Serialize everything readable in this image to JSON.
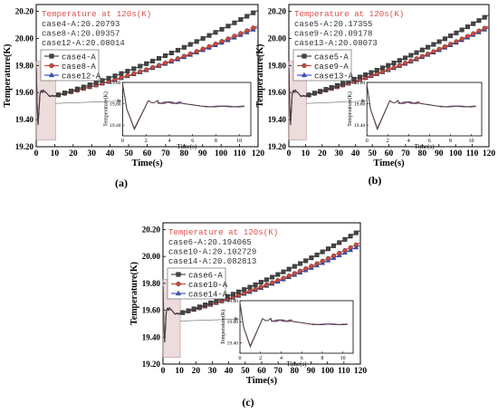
{
  "chart_data": [
    {
      "type": "line",
      "panel_label": "(a)",
      "xlabel": "Time(s)",
      "ylabel": "Temperature(K)",
      "xlim": [
        0,
        120
      ],
      "ylim": [
        19.2,
        20.25
      ],
      "x_ticks": [
        "0",
        "10",
        "20",
        "30",
        "40",
        "50",
        "60",
        "70",
        "80",
        "90",
        "100",
        "110",
        "120"
      ],
      "y_ticks": [
        "19.20",
        "19.40",
        "19.60",
        "19.80",
        "20.00",
        "20.20"
      ],
      "info_title": "Temperature at 120s(K)",
      "info_lines": [
        "case4-A:20.20793",
        "case8-A:20.09357",
        "case12-A:20.08014"
      ],
      "colors": [
        "#444444",
        "#d04a3a",
        "#3a55d8"
      ],
      "series": [
        {
          "name": "case4-A",
          "final": 20.20793
        },
        {
          "name": "case8-A",
          "final": 20.09357
        },
        {
          "name": "case12-A",
          "final": 20.08014
        }
      ],
      "inset": {
        "xlabel": "Time(s)",
        "ylabel": "Temperature(K)",
        "xlim": [
          0,
          11
        ],
        "ylim": [
          19.3,
          19.8
        ],
        "x_ticks": [
          "0",
          "2",
          "4",
          "6",
          "8",
          "10"
        ],
        "y_ticks": [
          "19.40",
          "19.60",
          "19.80"
        ]
      }
    },
    {
      "type": "line",
      "panel_label": "(b)",
      "xlabel": "Time(s)",
      "ylabel": "Temperature(K)",
      "xlim": [
        0,
        120
      ],
      "ylim": [
        19.2,
        20.25
      ],
      "x_ticks": [
        "0",
        "10",
        "20",
        "30",
        "40",
        "50",
        "60",
        "70",
        "80",
        "90",
        "100",
        "110",
        "120"
      ],
      "y_ticks": [
        "19.20",
        "19.40",
        "19.60",
        "19.80",
        "20.00",
        "20.20"
      ],
      "info_title": "Temperature at 120s(K)",
      "info_lines": [
        "case5-A:20.17355",
        "case9-A:20.09178",
        "case13-A:20.08073"
      ],
      "colors": [
        "#444444",
        "#d04a3a",
        "#3a55d8"
      ],
      "series": [
        {
          "name": "case5-A",
          "final": 20.17355
        },
        {
          "name": "case9-A",
          "final": 20.09178
        },
        {
          "name": "case13-A",
          "final": 20.08073
        }
      ],
      "inset": {
        "xlabel": "Time(s)",
        "ylabel": "Temperature(K)",
        "xlim": [
          0,
          11
        ],
        "ylim": [
          19.3,
          19.8
        ],
        "x_ticks": [
          "0",
          "2",
          "4",
          "6",
          "8",
          "10"
        ],
        "y_ticks": [
          "19.40",
          "19.60",
          "19.80"
        ]
      }
    },
    {
      "type": "line",
      "panel_label": "(c)",
      "xlabel": "Time(s)",
      "ylabel": "Temperature(K)",
      "xlim": [
        0,
        120
      ],
      "ylim": [
        19.2,
        20.25
      ],
      "x_ticks": [
        "0",
        "10",
        "20",
        "30",
        "40",
        "50",
        "60",
        "70",
        "80",
        "90",
        "100",
        "110",
        "120"
      ],
      "y_ticks": [
        "19.20",
        "19.40",
        "19.60",
        "19.80",
        "20.00",
        "20.20"
      ],
      "info_title": "Temperature at 120s(K)",
      "info_lines": [
        "case6-A:20.194065",
        "case10-A:20.102729",
        "case14-A:20.082813"
      ],
      "colors": [
        "#444444",
        "#d04a3a",
        "#3a55d8"
      ],
      "series": [
        {
          "name": "case6-A",
          "final": 20.194065
        },
        {
          "name": "case10-A",
          "final": 20.102729
        },
        {
          "name": "case14-A",
          "final": 20.082813
        }
      ],
      "inset": {
        "xlabel": "Time(s)",
        "ylabel": "Temperature(K)",
        "xlim": [
          0,
          11
        ],
        "ylim": [
          19.3,
          19.8
        ],
        "x_ticks": [
          "0",
          "2",
          "4",
          "6",
          "8",
          "10"
        ],
        "y_ticks": [
          "19.40",
          "19.60",
          "19.80"
        ]
      }
    }
  ]
}
